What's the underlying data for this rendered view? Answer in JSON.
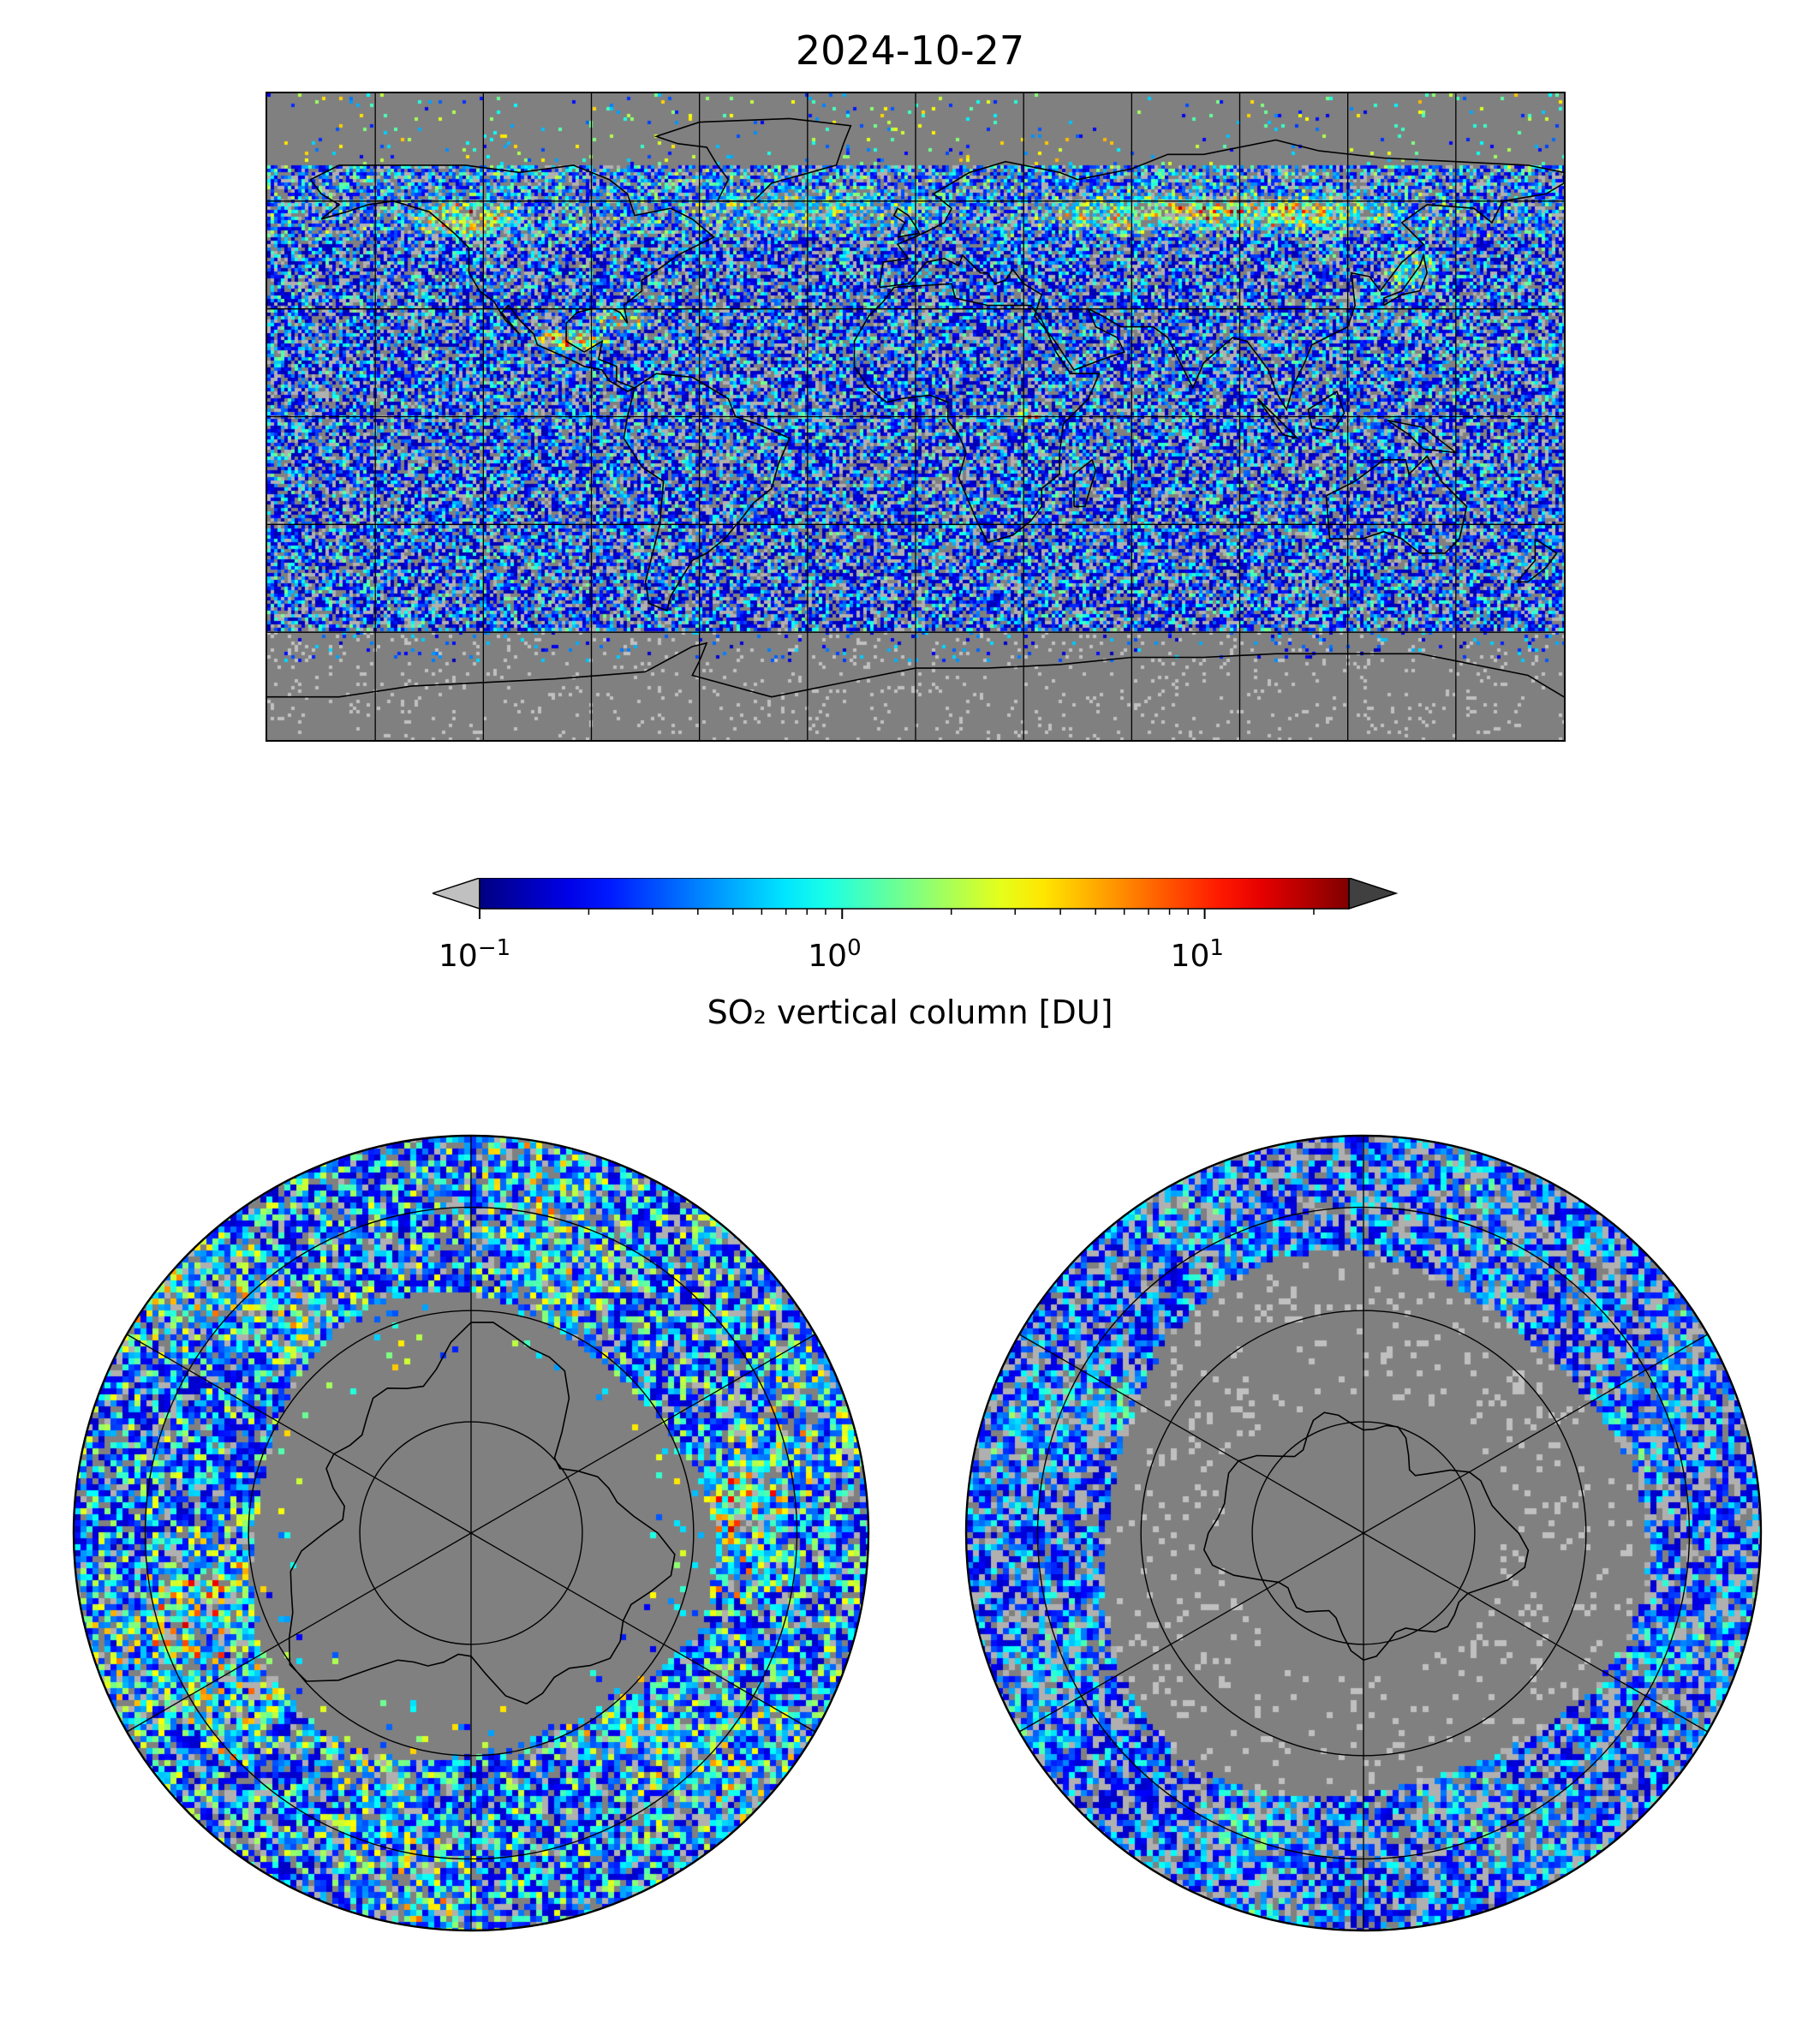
{
  "title": "2024-10-27",
  "colorbar": {
    "label": "SO₂ vertical column [DU]",
    "colormap": "jet",
    "scale": "log",
    "vmin": 0.1,
    "vmax": 25,
    "extend": "both",
    "under_color": "#c0c0c0",
    "over_color": "#404040",
    "ticks": [
      {
        "value": 0.1,
        "base": "10",
        "exp": "−1"
      },
      {
        "value": 1,
        "base": "10",
        "exp": "0"
      },
      {
        "value": 10,
        "base": "10",
        "exp": "1"
      }
    ]
  },
  "maps": {
    "global": {
      "projection": "plate-carree",
      "background": "#808080",
      "gridlines": true,
      "coastlines": true
    },
    "north_polar": {
      "projection": "north-polar-stereographic",
      "gridlines": true,
      "coastlines": true
    },
    "south_polar": {
      "projection": "south-polar-stereographic",
      "gridlines": true,
      "coastlines": true
    }
  },
  "colors": {
    "no_data": "#808080",
    "grid": "#000000",
    "coast": "#000000"
  }
}
